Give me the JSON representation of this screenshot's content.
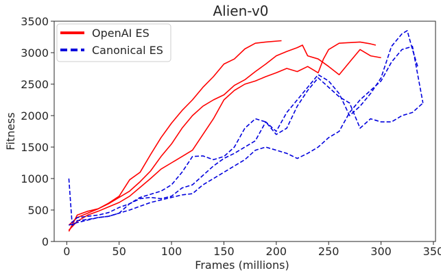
{
  "chart_data": {
    "type": "line",
    "title": "Alien-v0",
    "xlabel": "Frames (millions)",
    "ylabel": "Fitness",
    "xlim": [
      -12,
      352
    ],
    "ylim": [
      0,
      3500
    ],
    "xticks": [
      0,
      50,
      100,
      150,
      200,
      250,
      300,
      350
    ],
    "yticks": [
      0,
      500,
      1000,
      1500,
      2000,
      2500,
      3000,
      3500
    ],
    "grid": false,
    "legend": {
      "placement": "top-left",
      "entries": [
        "OpenAI ES",
        "Canonical ES"
      ]
    },
    "colors": {
      "OpenAI ES": "#ff0000",
      "Canonical ES": "#0000dd"
    },
    "series": [
      {
        "name": "OpenAI ES",
        "style": "solid",
        "runs": [
          {
            "x": [
              2,
              10,
              20,
              30,
              40,
              50,
              60,
              70,
              80,
              90,
              100,
              110,
              120,
              130,
              140,
              150,
              160,
              170,
              180,
              190,
              205
            ],
            "y": [
              160,
              420,
              480,
              520,
              610,
              720,
              980,
              1100,
              1380,
              1650,
              1880,
              2080,
              2250,
              2450,
              2620,
              2820,
              2900,
              3060,
              3150,
              3170,
              3190
            ]
          },
          {
            "x": [
              2,
              10,
              20,
              30,
              40,
              50,
              60,
              70,
              80,
              90,
              100,
              110,
              120,
              130,
              140,
              150,
              160,
              170,
              180,
              190,
              200,
              210,
              220,
              225,
              230,
              240,
              250,
              260,
              270,
              280,
              290,
              300
            ],
            "y": [
              260,
              380,
              450,
              520,
              600,
              700,
              800,
              950,
              1120,
              1350,
              1550,
              1800,
              2000,
              2150,
              2250,
              2330,
              2480,
              2570,
              2700,
              2820,
              2950,
              3020,
              3080,
              3120,
              2950,
              2900,
              2780,
              2650,
              2850,
              3050,
              2950,
              2920
            ]
          },
          {
            "x": [
              2,
              10,
              20,
              30,
              40,
              50,
              60,
              70,
              80,
              90,
              100,
              110,
              120,
              130,
              140,
              150,
              160,
              170,
              180,
              190,
              200,
              210,
              220,
              230,
              240,
              245,
              250,
              260,
              270,
              280,
              290,
              295
            ],
            "y": [
              180,
              320,
              420,
              480,
              550,
              620,
              720,
              860,
              1000,
              1150,
              1250,
              1350,
              1450,
              1700,
              1950,
              2250,
              2400,
              2500,
              2550,
              2620,
              2680,
              2750,
              2700,
              2780,
              2680,
              2900,
              3050,
              3150,
              3160,
              3170,
              3140,
              3120
            ]
          }
        ]
      },
      {
        "name": "Canonical ES",
        "style": "dashed",
        "runs": [
          {
            "x": [
              2,
              5,
              10,
              20,
              30,
              40,
              50,
              60,
              70,
              80,
              90,
              100,
              110,
              120,
              130,
              140,
              150,
              160,
              170,
              180,
              190,
              200,
              210,
              220,
              230,
              240,
              250,
              260,
              270,
              280,
              290,
              300,
              310,
              320,
              325,
              330,
              335
            ],
            "y": [
              1000,
              300,
              380,
              400,
              420,
              460,
              540,
              600,
              680,
              700,
              680,
              720,
              850,
              900,
              1050,
              1200,
              1320,
              1400,
              1500,
              1600,
              1900,
              1750,
              2050,
              2250,
              2450,
              2650,
              2550,
              2350,
              2000,
              2150,
              2350,
              2600,
              3100,
              3300,
              3350,
              3050,
              2780
            ]
          },
          {
            "x": [
              2,
              10,
              20,
              30,
              40,
              50,
              60,
              70,
              80,
              90,
              100,
              110,
              120,
              130,
              140,
              150,
              160,
              170,
              180,
              190,
              200,
              210,
              220,
              230,
              240,
              250,
              260,
              270,
              280,
              290,
              300,
              310,
              320,
              330,
              340
            ],
            "y": [
              260,
              300,
              340,
              380,
              400,
              450,
              500,
              560,
              620,
              660,
              700,
              740,
              760,
              900,
              1000,
              1100,
              1200,
              1300,
              1450,
              1500,
              1450,
              1400,
              1320,
              1400,
              1500,
              1650,
              1750,
              2050,
              2250,
              2400,
              2550,
              2850,
              3050,
              3100,
              2200
            ]
          },
          {
            "x": [
              5,
              10,
              20,
              30,
              40,
              50,
              60,
              70,
              80,
              90,
              100,
              110,
              120,
              130,
              140,
              150,
              160,
              170,
              180,
              190,
              200,
              210,
              220,
              230,
              240,
              250,
              260,
              270,
              280,
              290,
              300,
              310,
              320,
              330,
              340
            ],
            "y": [
              250,
              330,
              350,
              380,
              400,
              450,
              600,
              700,
              750,
              800,
              900,
              1100,
              1350,
              1360,
              1300,
              1350,
              1500,
              1800,
              1950,
              1900,
              1700,
              1800,
              2150,
              2400,
              2600,
              2450,
              2300,
              2200,
              1800,
              1950,
              1900,
              1900,
              2000,
              2050,
              2200
            ]
          }
        ]
      }
    ]
  }
}
